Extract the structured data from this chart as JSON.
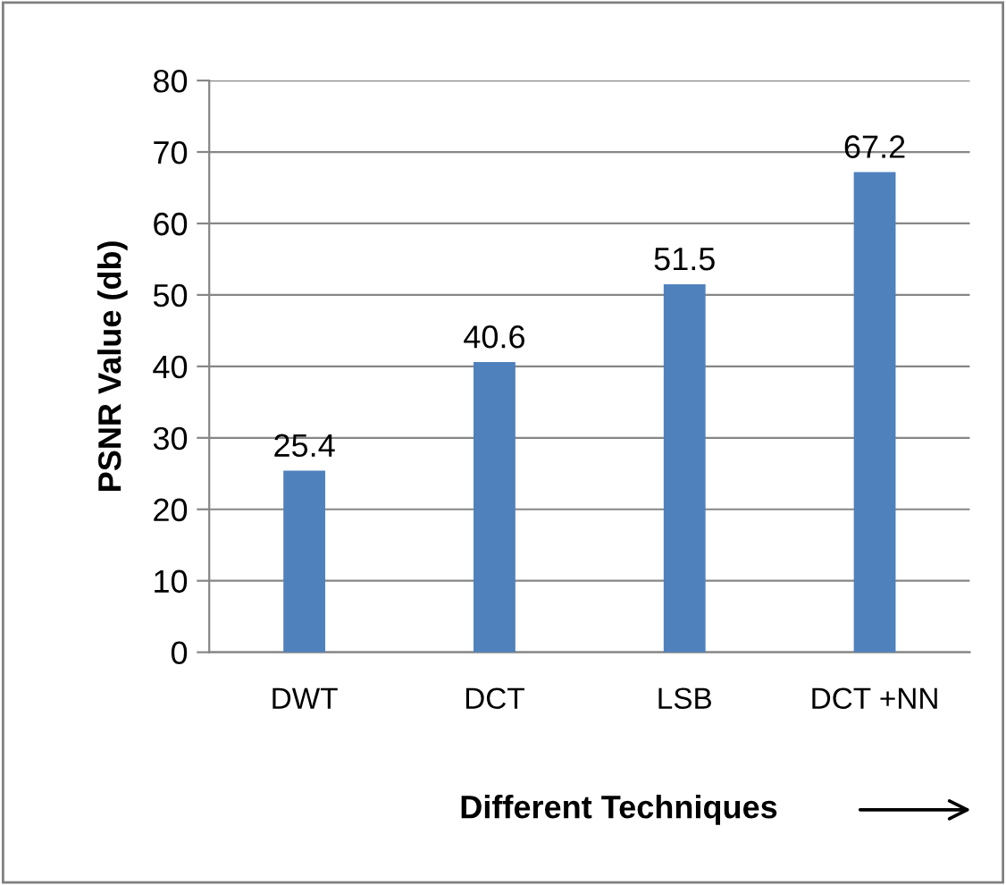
{
  "chart_data": {
    "type": "bar",
    "xlabel": "Different Techniques",
    "ylabel": "PSNR Value (db)",
    "categories": [
      "DWT",
      "DCT",
      "LSB",
      "DCT +NN"
    ],
    "values": [
      25.4,
      40.6,
      51.5,
      67.2
    ],
    "color": "#4f81bd",
    "ylim": [
      0,
      80
    ],
    "yticks": [
      0,
      10,
      20,
      30,
      40,
      50,
      60,
      70,
      80
    ],
    "grid": "y",
    "data_labels": true
  }
}
